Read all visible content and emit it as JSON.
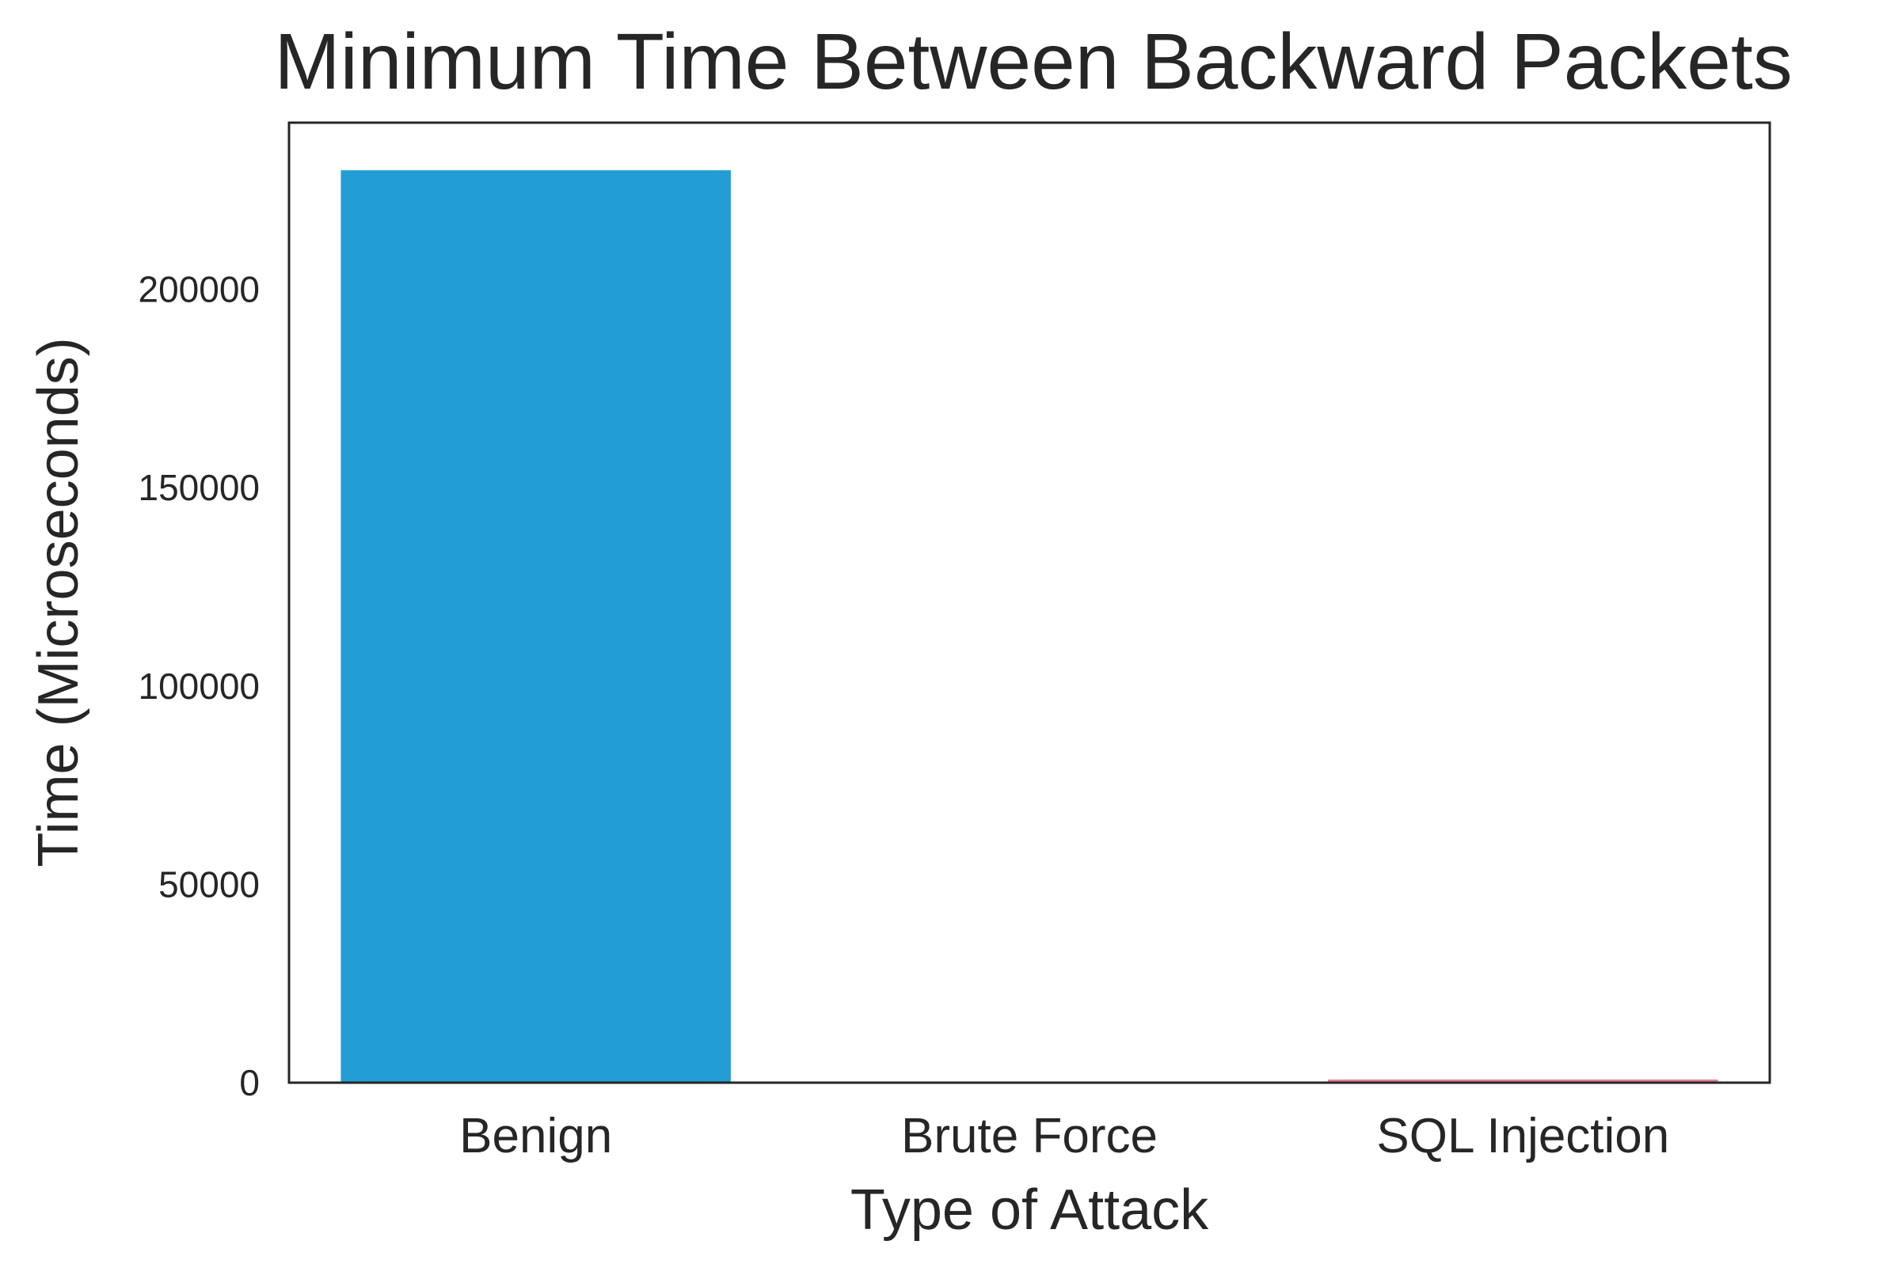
{
  "chart_data": {
    "type": "bar",
    "title": "Minimum Time Between Backward Packets",
    "xlabel": "Type of Attack",
    "ylabel": "Time (Microseconds)",
    "categories": [
      "Benign",
      "Brute Force",
      "SQL Injection"
    ],
    "values": [
      230000,
      0,
      800
    ],
    "bar_colors": [
      "#229dd6",
      "#3a3a3a",
      "#e8809a"
    ],
    "ylim": [
      0,
      242000
    ],
    "yticks": [
      0,
      50000,
      100000,
      150000,
      200000
    ],
    "ytick_labels": [
      "0",
      "50000",
      "100000",
      "150000",
      "200000"
    ],
    "grid": false,
    "legend": "none"
  }
}
